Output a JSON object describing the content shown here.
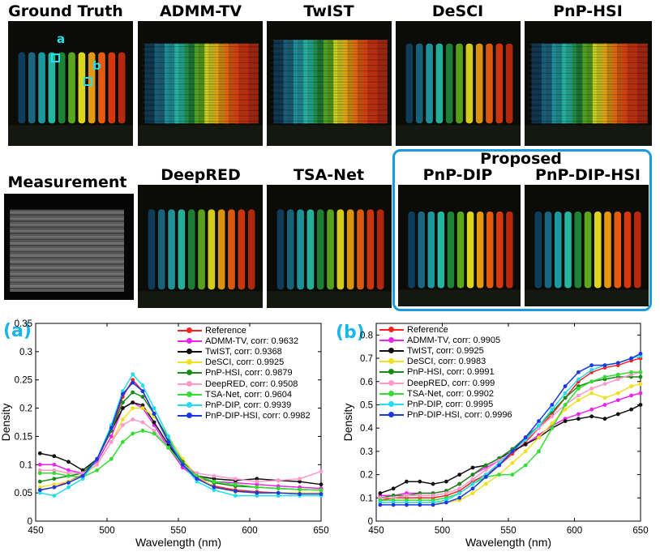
{
  "top_row_titles": [
    "Ground Truth",
    "ADMM-TV",
    "TwIST",
    "DeSCI",
    "PnP-HSI"
  ],
  "bottom_row_titles": [
    "Measurement",
    "DeepRED",
    "TSA-Net",
    "PnP-DIP",
    "PnP-DIP-HSI"
  ],
  "proposed_label": "Proposed",
  "markers": [
    "a",
    "b"
  ],
  "stripe_colors": [
    "#0f4060",
    "#1b6a86",
    "#1f9fa8",
    "#27c0a8",
    "#1f8a3a",
    "#5fb020",
    "#e8e020",
    "#f0a010",
    "#f06010",
    "#e03a10",
    "#c02a10"
  ],
  "plot_a": {
    "letter": "(a)",
    "xlabel": "Wavelength (nm)",
    "ylabel": "Density",
    "xticks": [
      "450",
      "500",
      "550",
      "600",
      "650"
    ],
    "yticks": [
      "0",
      "0.05",
      "0.1",
      "0.15",
      "0.2",
      "0.25",
      "0.3",
      "0.35"
    ],
    "legend": [
      "Reference",
      "ADMM-TV, corr: 0.9632",
      "TwIST, corr: 0.9368",
      "DeSCI, corr: 0.9925",
      "PnP-HSI, corr: 0.9879",
      "DeepRED, corr: 0.9508",
      "TSA-Net, corr: 0.9604",
      "PnP-DIP, corr: 0.9939",
      "PnP-DIP-HSI, corr: 0.9982"
    ]
  },
  "plot_b": {
    "letter": "(b)",
    "xlabel": "Wavelength (nm)",
    "ylabel": "Density",
    "xticks": [
      "450",
      "500",
      "550",
      "600",
      "650"
    ],
    "yticks": [
      "0",
      "0.1",
      "0.2",
      "0.3",
      "0.4",
      "0.5",
      "0.6",
      "0.7",
      "0.8"
    ],
    "legend": [
      "Reference",
      "ADMM-TV, corr: 0.9905",
      "TwIST, corr: 0.9925",
      "DeSCI, corr: 0.9983",
      "PnP-HSI, corr: 0.9991",
      "DeepRED, corr: 0.999",
      "TSA-Net, corr: 0.9902",
      "PnP-DIP, corr: 0.9995",
      "PnP-DIP-HSI, corr: 0.9996"
    ]
  },
  "chart_data": [
    {
      "type": "line",
      "title": "(a)",
      "xlabel": "Wavelength (nm)",
      "ylabel": "Density",
      "xlim": [
        450,
        650
      ],
      "ylim": [
        0,
        0.35
      ],
      "x": [
        453,
        463,
        473,
        483,
        493,
        503,
        511,
        518,
        525,
        533,
        543,
        553,
        563,
        575,
        590,
        605,
        620,
        635,
        650
      ],
      "series": [
        {
          "name": "Reference",
          "color": "#ff2020",
          "values": [
            0.055,
            0.06,
            0.07,
            0.082,
            0.11,
            0.16,
            0.22,
            0.25,
            0.23,
            0.19,
            0.14,
            0.1,
            0.075,
            0.062,
            0.055,
            0.052,
            0.05,
            0.048,
            0.05
          ]
        },
        {
          "name": "ADMM-TV, corr: 0.9632",
          "color": "#ee22ee",
          "values": [
            0.1,
            0.1,
            0.09,
            0.085,
            0.105,
            0.15,
            0.2,
            0.21,
            0.2,
            0.17,
            0.13,
            0.095,
            0.075,
            0.07,
            0.068,
            0.065,
            0.062,
            0.06,
            0.058
          ]
        },
        {
          "name": "TwIST, corr: 0.9368",
          "color": "#111111",
          "values": [
            0.12,
            0.115,
            0.105,
            0.09,
            0.11,
            0.16,
            0.2,
            0.21,
            0.205,
            0.175,
            0.135,
            0.1,
            0.08,
            0.075,
            0.072,
            0.075,
            0.072,
            0.07,
            0.065
          ]
        },
        {
          "name": "DeSCI, corr: 0.9925",
          "color": "#f0e020",
          "values": [
            0.06,
            0.065,
            0.07,
            0.08,
            0.1,
            0.14,
            0.18,
            0.2,
            0.2,
            0.185,
            0.15,
            0.11,
            0.08,
            0.06,
            0.052,
            0.05,
            0.05,
            0.05,
            0.05
          ]
        },
        {
          "name": "PnP-HSI, corr: 0.9879",
          "color": "#1a8a1a",
          "values": [
            0.07,
            0.075,
            0.08,
            0.085,
            0.11,
            0.16,
            0.21,
            0.228,
            0.22,
            0.19,
            0.145,
            0.105,
            0.08,
            0.068,
            0.062,
            0.06,
            0.058,
            0.056,
            0.055
          ]
        },
        {
          "name": "DeepRED, corr: 0.9508",
          "color": "#ff99cc",
          "values": [
            0.09,
            0.09,
            0.085,
            0.085,
            0.1,
            0.14,
            0.17,
            0.18,
            0.175,
            0.16,
            0.13,
            0.1,
            0.085,
            0.08,
            0.075,
            0.07,
            0.072,
            0.075,
            0.088
          ]
        },
        {
          "name": "TSA-Net, corr: 0.9604",
          "color": "#33dd33",
          "values": [
            0.085,
            0.085,
            0.08,
            0.078,
            0.09,
            0.11,
            0.14,
            0.155,
            0.16,
            0.155,
            0.13,
            0.1,
            0.08,
            0.07,
            0.065,
            0.06,
            0.058,
            0.056,
            0.055
          ]
        },
        {
          "name": "PnP-DIP, corr: 0.9939",
          "color": "#22ddee",
          "values": [
            0.05,
            0.045,
            0.06,
            0.075,
            0.11,
            0.17,
            0.23,
            0.26,
            0.24,
            0.2,
            0.15,
            0.1,
            0.07,
            0.055,
            0.045,
            0.045,
            0.045,
            0.045,
            0.045
          ]
        },
        {
          "name": "PnP-DIP-HSI, corr: 0.9982",
          "color": "#1a3ae0",
          "values": [
            0.055,
            0.06,
            0.068,
            0.08,
            0.11,
            0.165,
            0.225,
            0.245,
            0.23,
            0.19,
            0.14,
            0.1,
            0.075,
            0.06,
            0.053,
            0.05,
            0.05,
            0.048,
            0.048
          ]
        }
      ]
    },
    {
      "type": "line",
      "title": "(b)",
      "xlabel": "Wavelength (nm)",
      "ylabel": "Density",
      "xlim": [
        450,
        650
      ],
      "ylim": [
        0,
        0.85
      ],
      "x": [
        453,
        463,
        473,
        483,
        493,
        503,
        513,
        523,
        533,
        543,
        553,
        563,
        573,
        583,
        593,
        603,
        613,
        623,
        633,
        643,
        650
      ],
      "series": [
        {
          "name": "Reference",
          "color": "#ff2020",
          "values": [
            0.09,
            0.1,
            0.1,
            0.1,
            0.1,
            0.11,
            0.13,
            0.17,
            0.2,
            0.24,
            0.29,
            0.34,
            0.4,
            0.46,
            0.53,
            0.6,
            0.64,
            0.66,
            0.67,
            0.69,
            0.7
          ]
        },
        {
          "name": "ADMM-TV, corr: 0.9905",
          "color": "#ee22ee",
          "values": [
            0.11,
            0.11,
            0.12,
            0.12,
            0.12,
            0.13,
            0.16,
            0.2,
            0.23,
            0.26,
            0.3,
            0.33,
            0.37,
            0.41,
            0.44,
            0.46,
            0.48,
            0.5,
            0.52,
            0.54,
            0.55
          ]
        },
        {
          "name": "TwIST, corr: 0.9925",
          "color": "#111111",
          "values": [
            0.12,
            0.14,
            0.17,
            0.17,
            0.16,
            0.17,
            0.2,
            0.23,
            0.24,
            0.27,
            0.3,
            0.33,
            0.36,
            0.4,
            0.43,
            0.44,
            0.45,
            0.44,
            0.46,
            0.48,
            0.5
          ]
        },
        {
          "name": "DeSCI, corr: 0.9983",
          "color": "#f0e020",
          "values": [
            0.08,
            0.08,
            0.08,
            0.08,
            0.08,
            0.08,
            0.09,
            0.12,
            0.16,
            0.2,
            0.25,
            0.3,
            0.36,
            0.42,
            0.48,
            0.52,
            0.55,
            0.53,
            0.55,
            0.58,
            0.59
          ]
        },
        {
          "name": "PnP-HSI, corr: 0.9991",
          "color": "#1a8a1a",
          "values": [
            0.1,
            0.11,
            0.11,
            0.12,
            0.12,
            0.13,
            0.16,
            0.2,
            0.24,
            0.27,
            0.31,
            0.36,
            0.41,
            0.47,
            0.53,
            0.58,
            0.6,
            0.61,
            0.62,
            0.62,
            0.62
          ]
        },
        {
          "name": "DeepRED, corr: 0.999",
          "color": "#ff99cc",
          "values": [
            0.1,
            0.1,
            0.11,
            0.11,
            0.11,
            0.12,
            0.14,
            0.18,
            0.22,
            0.26,
            0.3,
            0.35,
            0.4,
            0.45,
            0.5,
            0.54,
            0.57,
            0.59,
            0.61,
            0.63,
            0.64
          ]
        },
        {
          "name": "TSA-Net, corr: 0.9902",
          "color": "#33dd33",
          "values": [
            0.09,
            0.09,
            0.09,
            0.09,
            0.09,
            0.1,
            0.12,
            0.16,
            0.19,
            0.2,
            0.2,
            0.24,
            0.3,
            0.4,
            0.5,
            0.57,
            0.6,
            0.62,
            0.63,
            0.64,
            0.64
          ]
        },
        {
          "name": "PnP-DIP, corr: 0.9995",
          "color": "#22ddee",
          "values": [
            0.08,
            0.08,
            0.08,
            0.08,
            0.08,
            0.09,
            0.12,
            0.16,
            0.2,
            0.25,
            0.3,
            0.35,
            0.41,
            0.48,
            0.55,
            0.61,
            0.65,
            0.67,
            0.68,
            0.7,
            0.71
          ]
        },
        {
          "name": "PnP-DIP-HSI, corr: 0.9996",
          "color": "#1a3ae0",
          "values": [
            0.07,
            0.07,
            0.07,
            0.07,
            0.07,
            0.08,
            0.1,
            0.14,
            0.19,
            0.24,
            0.3,
            0.36,
            0.43,
            0.5,
            0.58,
            0.64,
            0.67,
            0.67,
            0.68,
            0.7,
            0.72
          ]
        }
      ]
    }
  ]
}
